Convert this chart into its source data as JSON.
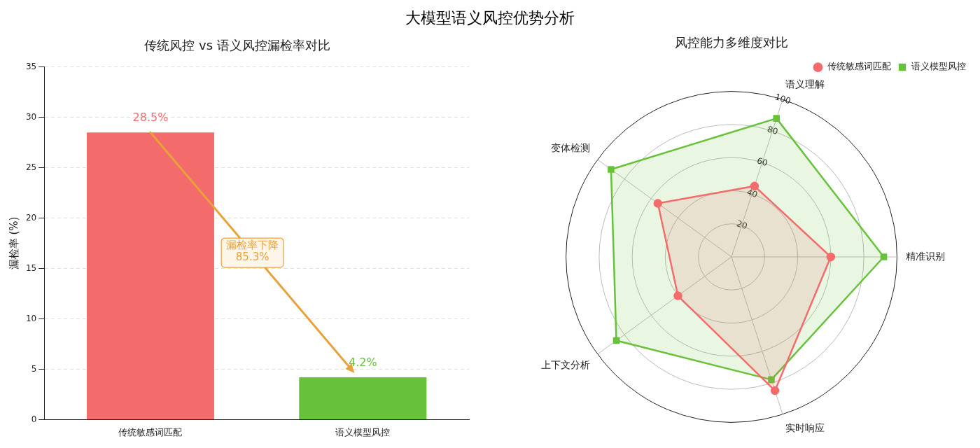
{
  "chart_data": [
    {
      "type": "bar",
      "title": "传统风控 vs 语义风控漏检率对比",
      "ylabel": "漏检率 (%)",
      "categories": [
        "传统敏感词匹配",
        "语义模型风控"
      ],
      "values": [
        28.5,
        4.2
      ],
      "colors": [
        "#f46b6b",
        "#67c23a"
      ],
      "value_labels": [
        "28.5%",
        "4.2%"
      ],
      "ylim": [
        0,
        35
      ],
      "yticks": [
        0,
        5,
        10,
        15,
        20,
        25,
        30,
        35
      ],
      "grid": "y",
      "annotations": [
        "大模型语义风控优势分析",
        "漏检率下降\n85.3%"
      ]
    },
    {
      "type": "radar",
      "title": "风控能力多维度对比",
      "categories": [
        "语义理解",
        "精准识别",
        "实时响应",
        "上下文分析",
        "变体检测"
      ],
      "series": [
        {
          "name": "传统敏感词匹配",
          "color": "#f46b6b",
          "marker": "circle",
          "values": [
            45,
            60,
            85,
            40,
            55
          ]
        },
        {
          "name": "语义模型风控",
          "color": "#67c23a",
          "marker": "square",
          "values": [
            88,
            92,
            78,
            86,
            90
          ]
        }
      ],
      "ylim": [
        0,
        100
      ],
      "yticks": [
        20,
        40,
        60,
        80,
        100
      ],
      "grid": true,
      "legend": "top right"
    }
  ]
}
